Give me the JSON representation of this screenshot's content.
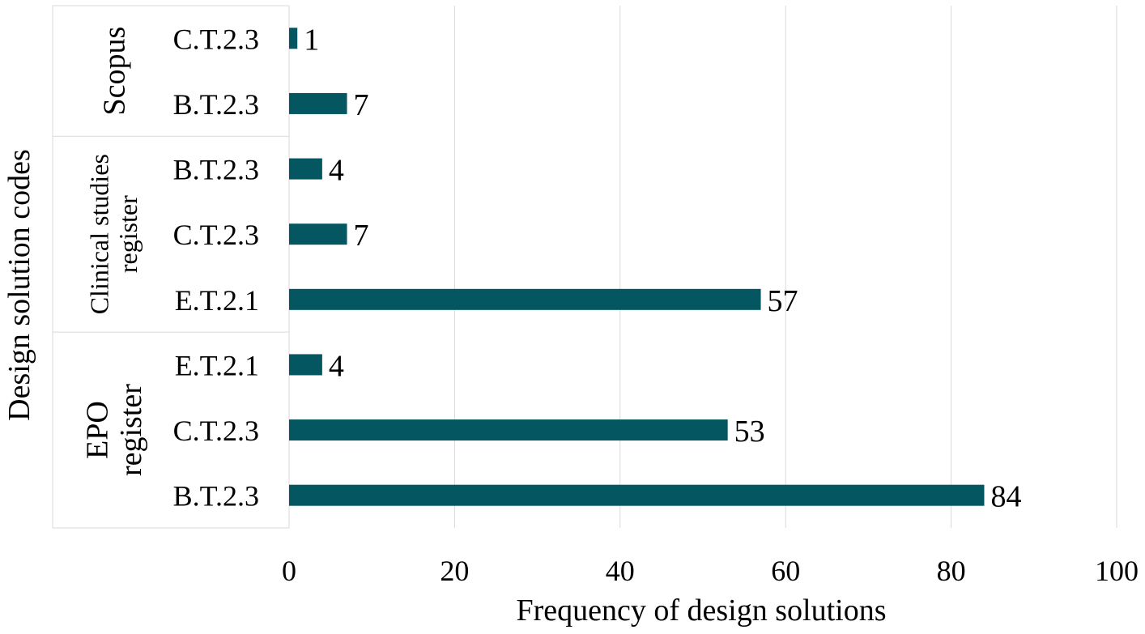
{
  "chart_data": {
    "type": "bar",
    "orientation": "horizontal",
    "title": "",
    "xlabel": "Frequency of design solutions",
    "ylabel": "Design solution codes",
    "xlim": [
      0,
      100
    ],
    "xticks": [
      0,
      20,
      40,
      60,
      80,
      100
    ],
    "grid": "vertical",
    "legend": "none",
    "bar_color": "#045660",
    "groups": [
      {
        "label": "Scopus",
        "bars": [
          {
            "code": "C.T.2.3",
            "value": 1
          },
          {
            "code": "B.T.2.3",
            "value": 7
          }
        ]
      },
      {
        "label": "Clinical studies register",
        "bars": [
          {
            "code": "B.T.2.3",
            "value": 4
          },
          {
            "code": "C.T.2.3",
            "value": 7
          },
          {
            "code": "E.T.2.1",
            "value": 57
          }
        ]
      },
      {
        "label": "EPO register",
        "bars": [
          {
            "code": "E.T.2.1",
            "value": 4
          },
          {
            "code": "C.T.2.3",
            "value": 53
          },
          {
            "code": "B.T.2.3",
            "value": 84
          }
        ]
      }
    ]
  }
}
